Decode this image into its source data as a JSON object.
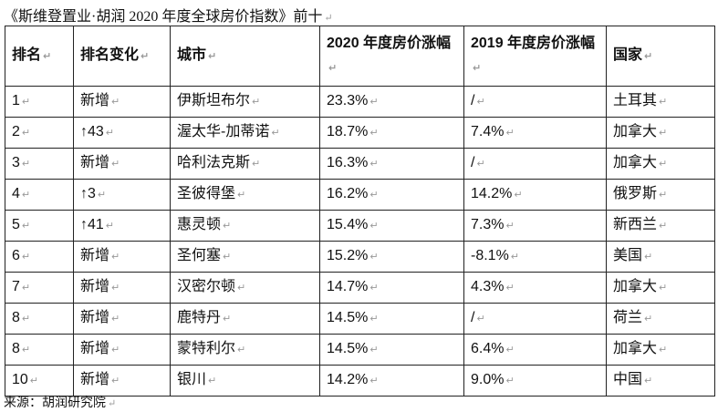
{
  "title": "《斯维登置业·胡润 2020 年度全球房价指数》前十",
  "table": {
    "header": [
      "排名",
      "排名变化",
      "城市",
      "2020 年度房价涨幅",
      "2019 年度房价涨幅",
      "国家"
    ],
    "rows": [
      [
        "1",
        "新增",
        "伊斯坦布尔",
        "23.3%",
        "/",
        "土耳其"
      ],
      [
        "2",
        "↑43",
        "渥太华-加蒂诺",
        "18.7%",
        "7.4%",
        "加拿大"
      ],
      [
        "3",
        "新增",
        "哈利法克斯",
        "16.3%",
        "/",
        "加拿大"
      ],
      [
        "4",
        "↑3",
        "圣彼得堡",
        "16.2%",
        "14.2%",
        "俄罗斯"
      ],
      [
        "5",
        "↑41",
        "惠灵顿",
        "15.4%",
        "7.3%",
        "新西兰"
      ],
      [
        "6",
        "新增",
        "圣何塞",
        "15.2%",
        "-8.1%",
        "美国"
      ],
      [
        "7",
        "新增",
        "汉密尔顿",
        "14.7%",
        "4.3%",
        "加拿大"
      ],
      [
        "8",
        "新增",
        "鹿特丹",
        "14.5%",
        "/",
        "荷兰"
      ],
      [
        "8",
        "新增",
        "蒙特利尔",
        "14.5%",
        "6.4%",
        "加拿大"
      ],
      [
        "10",
        "新增",
        "银川",
        "14.2%",
        "9.0%",
        "中国"
      ]
    ]
  },
  "source": "来源：胡润研究院"
}
